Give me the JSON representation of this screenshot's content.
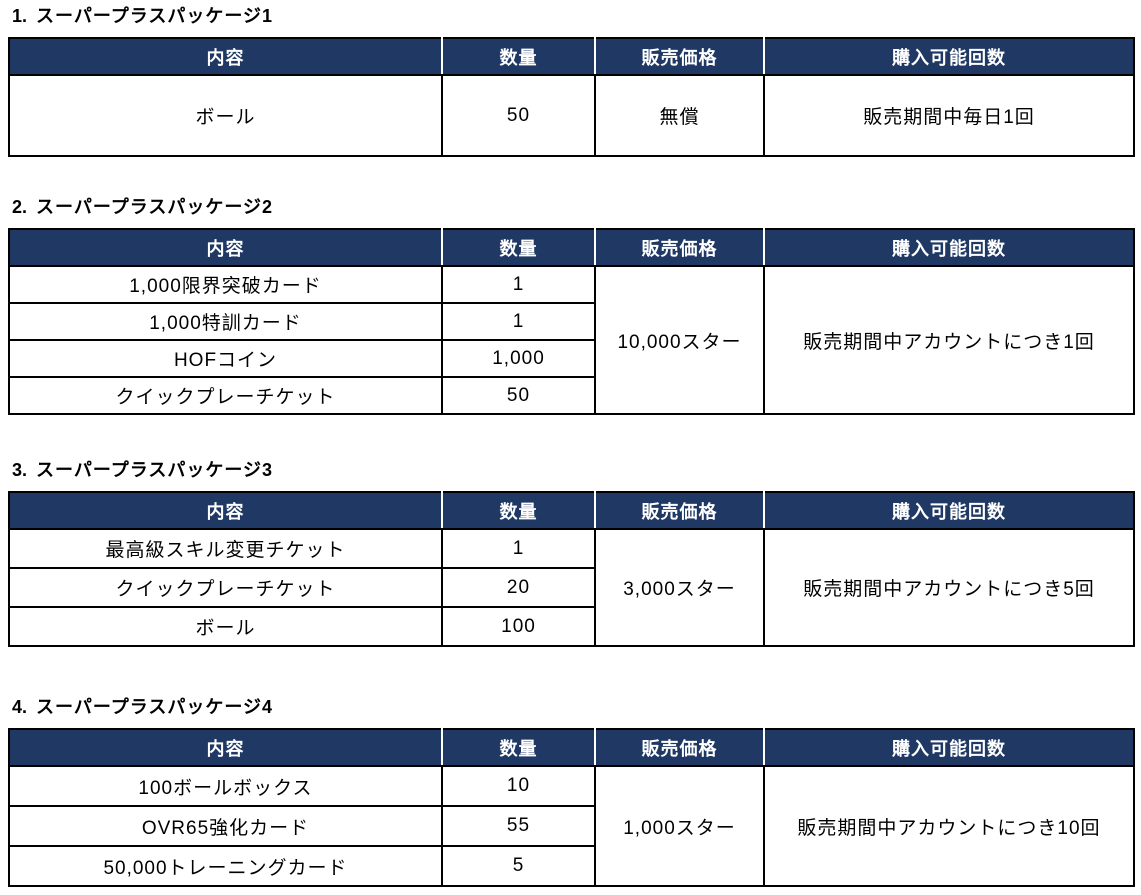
{
  "colors": {
    "header_bg": "#1F3864",
    "header_text": "#FFFFFF",
    "body_text": "#000000",
    "border": "#000000",
    "header_divider": "#FFFFFF"
  },
  "columns": [
    "内容",
    "数量",
    "販売価格",
    "購入可能回数"
  ],
  "sections": [
    {
      "number": "1.",
      "title": "スーパープラスパッケージ1",
      "items": [
        {
          "name": "ボール",
          "qty": "50"
        }
      ],
      "price": "無償",
      "limit": "販売期間中毎日1回"
    },
    {
      "number": "2.",
      "title": "スーパープラスパッケージ2",
      "items": [
        {
          "name": "1,000限界突破カード",
          "qty": "1"
        },
        {
          "name": "1,000特訓カード",
          "qty": "1"
        },
        {
          "name": "HOFコイン",
          "qty": "1,000"
        },
        {
          "name": "クイックプレーチケット",
          "qty": "50"
        }
      ],
      "price": "10,000スター",
      "limit": "販売期間中アカウントにつき1回"
    },
    {
      "number": "3.",
      "title": "スーパープラスパッケージ3",
      "items": [
        {
          "name": "最高級スキル変更チケット",
          "qty": "1"
        },
        {
          "name": "クイックプレーチケット",
          "qty": "20"
        },
        {
          "name": "ボール",
          "qty": "100"
        }
      ],
      "price": "3,000スター",
      "limit": "販売期間中アカウントにつき5回"
    },
    {
      "number": "4.",
      "title": "スーパープラスパッケージ4",
      "items": [
        {
          "name": "100ボールボックス",
          "qty": "10"
        },
        {
          "name": "OVR65強化カード",
          "qty": "55"
        },
        {
          "name": "50,000トレーニングカード",
          "qty": "5"
        }
      ],
      "price": "1,000スター",
      "limit": "販売期間中アカウントにつき10回"
    }
  ]
}
